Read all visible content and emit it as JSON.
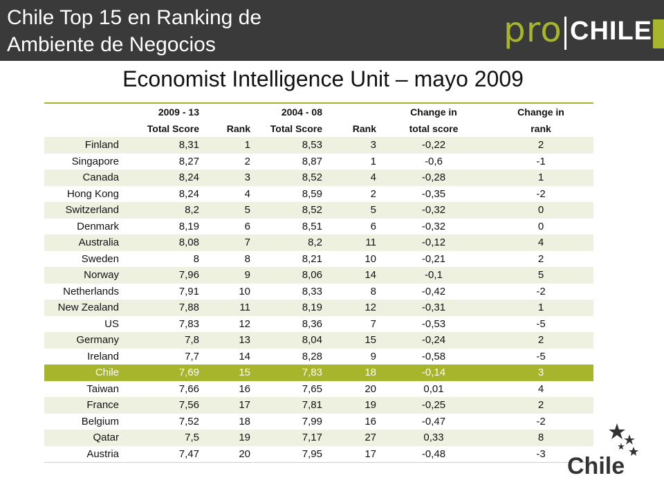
{
  "header": {
    "title_line1": "Chile Top 15 en Ranking de",
    "title_line2": "Ambiente de Negocios",
    "logo_pro": "pro",
    "logo_chile": "CHILE"
  },
  "subtitle": "Economist Intelligence Unit – mayo 2009",
  "table": {
    "headers": [
      {
        "line1": "",
        "line2": ""
      },
      {
        "line1": "2009 - 13",
        "line2": "Total Score"
      },
      {
        "line1": "",
        "line2": "Rank"
      },
      {
        "line1": "2004 - 08",
        "line2": "Total Score"
      },
      {
        "line1": "",
        "line2": "Rank"
      },
      {
        "line1": "Change in",
        "line2": "total score"
      },
      {
        "line1": "Change in",
        "line2": "rank"
      }
    ],
    "rows": [
      [
        "Finland",
        "8,31",
        "1",
        "8,53",
        "3",
        "-0,22",
        "2"
      ],
      [
        "Singapore",
        "8,27",
        "2",
        "8,87",
        "1",
        "-0,6",
        "-1"
      ],
      [
        "Canada",
        "8,24",
        "3",
        "8,52",
        "4",
        "-0,28",
        "1"
      ],
      [
        "Hong Kong",
        "8,24",
        "4",
        "8,59",
        "2",
        "-0,35",
        "-2"
      ],
      [
        "Switzerland",
        "8,2",
        "5",
        "8,52",
        "5",
        "-0,32",
        "0"
      ],
      [
        "Denmark",
        "8,19",
        "6",
        "8,51",
        "6",
        "-0,32",
        "0"
      ],
      [
        "Australia",
        "8,08",
        "7",
        "8,2",
        "11",
        "-0,12",
        "4"
      ],
      [
        "Sweden",
        "8",
        "8",
        "8,21",
        "10",
        "-0,21",
        "2"
      ],
      [
        "Norway",
        "7,96",
        "9",
        "8,06",
        "14",
        "-0,1",
        "5"
      ],
      [
        "Netherlands",
        "7,91",
        "10",
        "8,33",
        "8",
        "-0,42",
        "-2"
      ],
      [
        "New Zealand",
        "7,88",
        "11",
        "8,19",
        "12",
        "-0,31",
        "1"
      ],
      [
        "US",
        "7,83",
        "12",
        "8,36",
        "7",
        "-0,53",
        "-5"
      ],
      [
        "Germany",
        "7,8",
        "13",
        "8,04",
        "15",
        "-0,24",
        "2"
      ],
      [
        "Ireland",
        "7,7",
        "14",
        "8,28",
        "9",
        "-0,58",
        "-5"
      ],
      [
        "Chile",
        "7,69",
        "15",
        "7,83",
        "18",
        "-0,14",
        "3"
      ],
      [
        "Taiwan",
        "7,66",
        "16",
        "7,65",
        "20",
        "0,01",
        "4"
      ],
      [
        "France",
        "7,56",
        "17",
        "7,81",
        "19",
        "-0,25",
        "2"
      ],
      [
        "Belgium",
        "7,52",
        "18",
        "7,99",
        "16",
        "-0,47",
        "-2"
      ],
      [
        "Qatar",
        "7,5",
        "19",
        "7,17",
        "27",
        "0,33",
        "8"
      ],
      [
        "Austria",
        "7,47",
        "20",
        "7,95",
        "17",
        "-0,48",
        "-3"
      ]
    ],
    "highlight_country": "Chile"
  },
  "brand": {
    "wordmark": "Chile",
    "icon": "stars-icon"
  },
  "colors": {
    "header_bg": "#3a3a3a",
    "accent": "#a6b52c",
    "row_stripe": "#eef0e0"
  }
}
